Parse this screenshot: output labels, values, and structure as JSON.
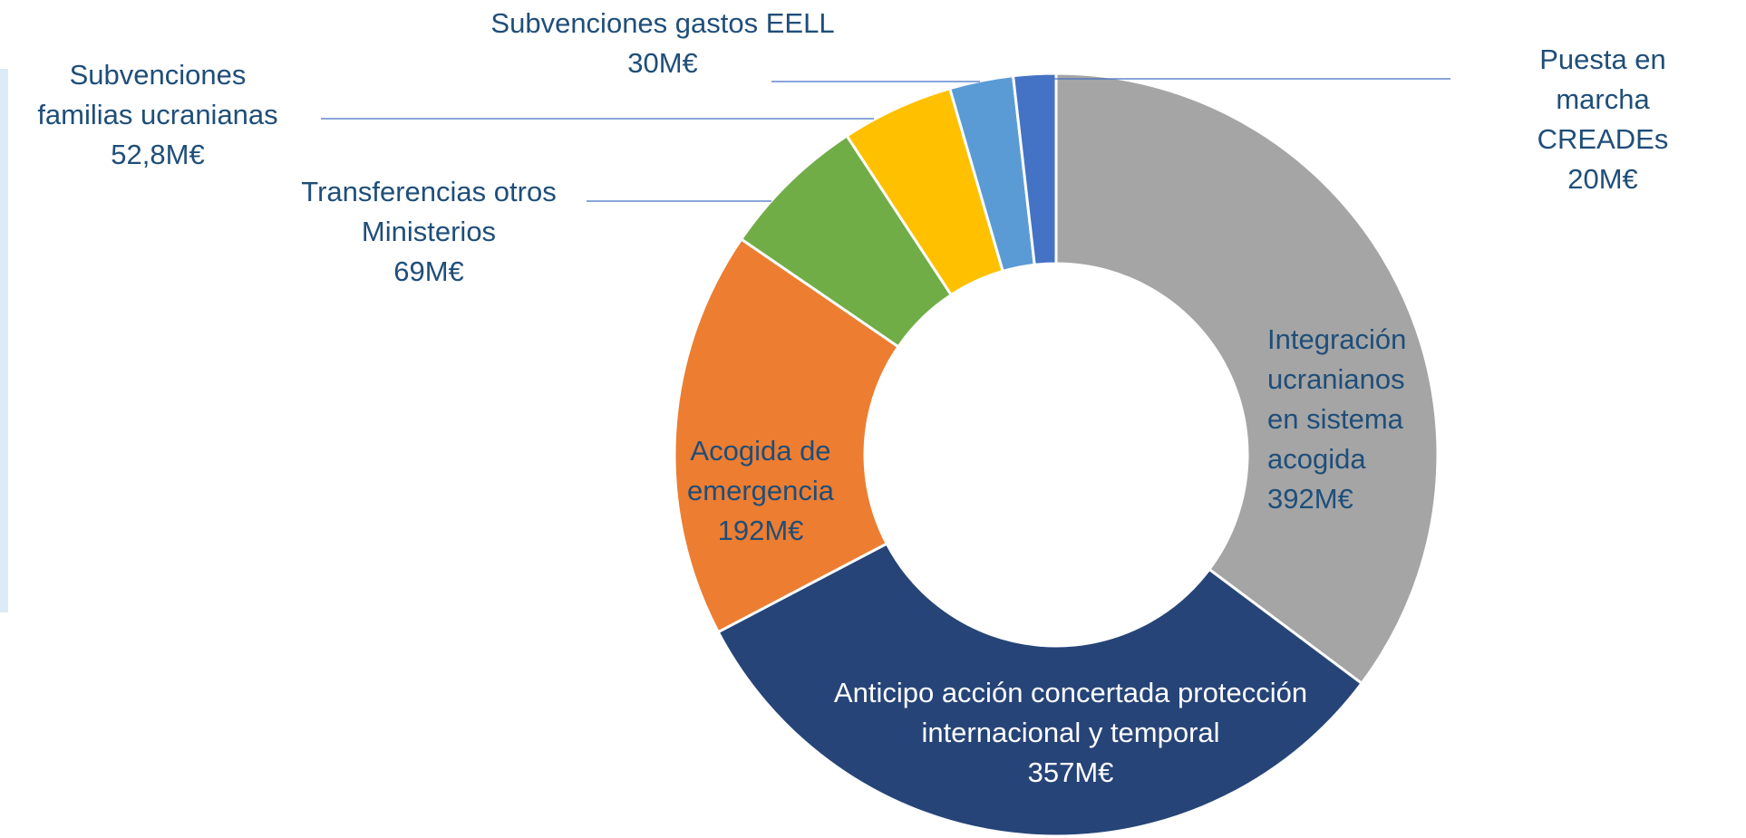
{
  "chart_data": {
    "type": "donut",
    "categories": [
      "Integración\nucranianos\nen sistema\nacogida",
      "Anticipo acción concertada protección\ninternacional y temporal",
      "Acogida de\nemergencia",
      "Transferencias  otros\nMinisterios",
      "Subvenciones\nfamilias ucranianas",
      "Subvenciones  gastos EELL",
      "Puesta en marcha\nCREADEs"
    ],
    "values": [
      392,
      357,
      192,
      69,
      52.8,
      30,
      20
    ],
    "value_labels": [
      "392M€",
      "357M€",
      "192M€",
      "69M€",
      "52,8M€",
      "30M€",
      "20M€"
    ],
    "colors": [
      "#a5a5a5",
      "#264478",
      "#ed7d31",
      "#70ad47",
      "#ffc000",
      "#5b9bd5",
      "#4472c4"
    ]
  }
}
